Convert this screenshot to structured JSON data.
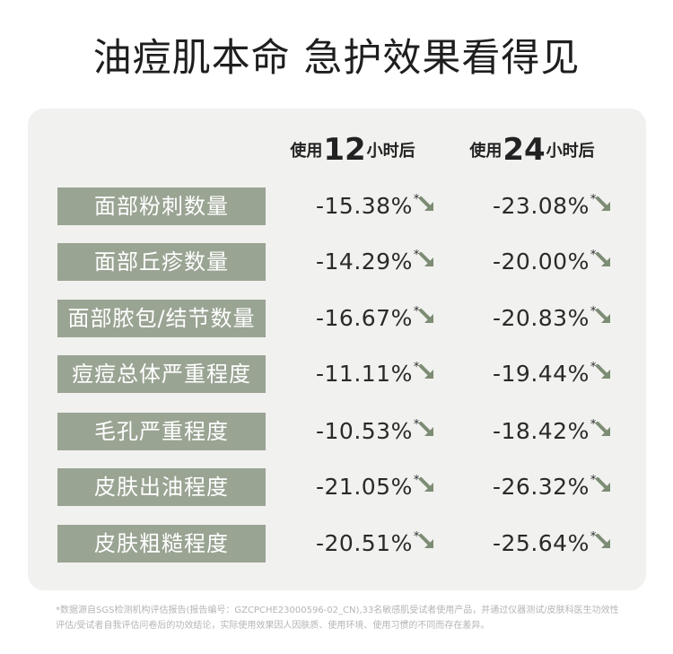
{
  "title": "油痘肌本命 急护效果看得见",
  "columns": [
    {
      "prefix": "使用",
      "number": "12",
      "suffix": "小时后"
    },
    {
      "prefix": "使用",
      "number": "24",
      "suffix": "小时后"
    }
  ],
  "rows": [
    {
      "label": "面部粉刺数量",
      "h12": "-15.38%",
      "h24": "-23.08%"
    },
    {
      "label": "面部丘疹数量",
      "h12": "-14.29%",
      "h24": "-20.00%"
    },
    {
      "label": "面部脓包/结节数量",
      "h12": "-16.67%",
      "h24": "-20.83%"
    },
    {
      "label": "痘痘总体严重程度",
      "h12": "-11.11%",
      "h24": "-19.44%"
    },
    {
      "label": "毛孔严重程度",
      "h12": "-10.53%",
      "h24": "-18.42%"
    },
    {
      "label": "皮肤出油程度",
      "h12": "-21.05%",
      "h24": "-26.32%"
    },
    {
      "label": "皮肤粗糙程度",
      "h12": "-20.51%",
      "h24": "-25.64%"
    }
  ],
  "star": "*",
  "icons": {
    "decrease": "arrow-down-right-icon"
  },
  "colors": {
    "label_bg": "#9aa493",
    "arrow": "#7d8c74",
    "card_bg": "#f1f1ef"
  },
  "footnote": "*数据源自SGS检测机构评估报告(报告编号：GZCPCHE23000596-02_CN),33名敏感肌受试者使用产品，并通过仪器测试/皮肤科医生功效性评估/受试者自我评估问卷后的功效结论，实际使用效果因人因肤质、使用环境、使用习惯的不同而存在差异。"
}
